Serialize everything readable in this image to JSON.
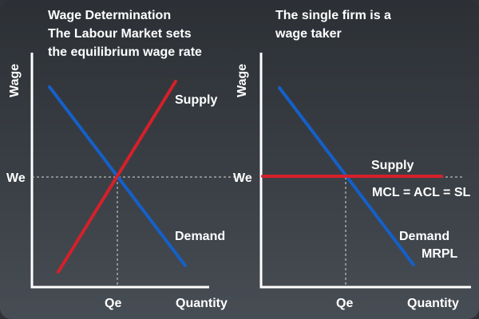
{
  "colors": {
    "background_top": "#2c3035",
    "background_bottom": "#474d54",
    "axis": "#ffffff",
    "supply": "#d6202a",
    "demand": "#1560c8",
    "guide": "#d9d9d9"
  },
  "left_panel": {
    "title_lines": [
      "Wage Determination",
      "The Labour Market sets",
      "the equilibrium wage rate"
    ],
    "y_axis_label": "Wage",
    "x_axis_label": "Quantity",
    "equilibrium_wage_label": "We",
    "equilibrium_quantity_label": "Qe",
    "supply_label": "Supply",
    "demand_label": "Demand"
  },
  "right_panel": {
    "title_lines": [
      "The single firm is a",
      "wage taker"
    ],
    "y_axis_label": "Wage",
    "x_axis_label": "Quantity",
    "equilibrium_wage_label": "We",
    "equilibrium_quantity_label": "Qe",
    "supply_label": "Supply",
    "cost_identity_label": "MCL = ACL = SL",
    "demand_label": "Demand",
    "mrpl_label": "MRPL"
  }
}
